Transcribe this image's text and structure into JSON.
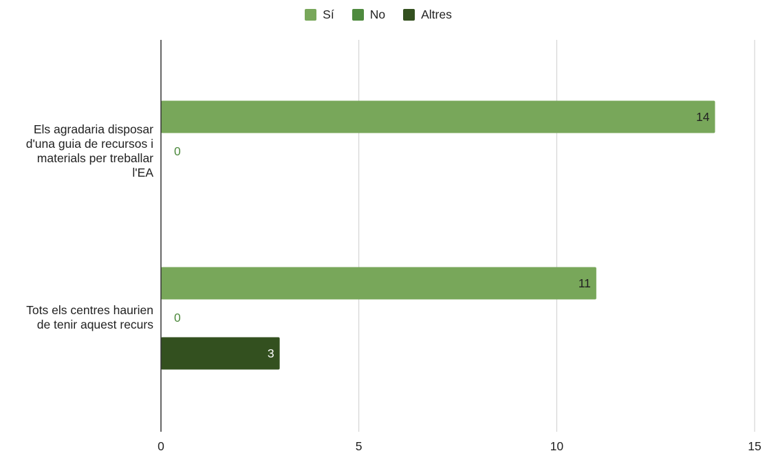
{
  "chart_data": {
    "type": "bar",
    "orientation": "horizontal",
    "categories": [
      [
        "Els agradaria disposar",
        "d'una guia de recursos i",
        "materials per treballar",
        "l'EA"
      ],
      [
        "Tots els centres haurien",
        "de tenir aquest recurs"
      ]
    ],
    "series": [
      {
        "name": "Sí",
        "color": "#78a75a",
        "values": [
          14,
          11
        ],
        "data_labels": [
          "14",
          "11"
        ]
      },
      {
        "name": "No",
        "color": "#4e8a3e",
        "values": [
          0,
          0
        ],
        "data_labels": [
          "0",
          "0"
        ]
      },
      {
        "name": "Altres",
        "color": "#33501f",
        "values": [
          null,
          3
        ],
        "data_labels": [
          null,
          "3"
        ]
      }
    ],
    "xlim": [
      0,
      15
    ],
    "xticks": [
      0,
      5,
      10,
      15
    ],
    "xtick_labels": [
      "0",
      "5",
      "10",
      "15"
    ],
    "title": "",
    "xlabel": "",
    "ylabel": "",
    "grid": "vertical",
    "legend": "top-center"
  }
}
